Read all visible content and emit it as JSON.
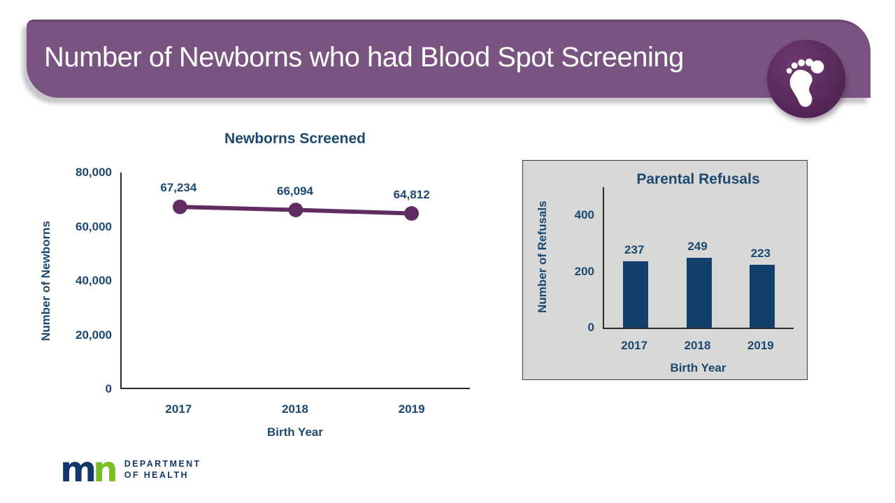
{
  "slide": {
    "title": "Number of Newborns who had Blood Spot Screening",
    "icon": "footprint-icon"
  },
  "colors": {
    "banner_purple": "#7A5480",
    "badge_circle_purple": "#5A2A5C",
    "line_purple": "#612C61",
    "bar_navy": "#12406B",
    "text_navy": "#1C4870",
    "panel_gray": "#D8D8D6",
    "logo_green": "#78BE21",
    "logo_navy": "#12386B"
  },
  "chart_data": [
    {
      "id": "screened",
      "type": "line",
      "title": "Newborns Screened",
      "categories": [
        "2017",
        "2018",
        "2019"
      ],
      "values": [
        67234,
        66094,
        64812
      ],
      "value_labels": [
        "67,234",
        "66,094",
        "64,812"
      ],
      "xlabel": "Birth Year",
      "ylabel": "Number of Newborns",
      "ylim": [
        0,
        80000
      ],
      "yticks": [
        0,
        20000,
        40000,
        60000,
        80000
      ],
      "ytick_labels": [
        "0",
        "20,000",
        "40,000",
        "60,000",
        "80,000"
      ],
      "grid": false,
      "legend": "none",
      "series_color": "#612C61"
    },
    {
      "id": "refusals",
      "type": "bar",
      "title": "Parental Refusals",
      "categories": [
        "2017",
        "2018",
        "2019"
      ],
      "values": [
        237,
        249,
        223
      ],
      "value_labels": [
        "237",
        "249",
        "223"
      ],
      "xlabel": "Birth Year",
      "ylabel": "Number of Refusals",
      "ylim": [
        0,
        500
      ],
      "yticks": [
        0,
        200,
        400
      ],
      "ytick_labels": [
        "0",
        "200",
        "400"
      ],
      "grid": false,
      "legend": "none",
      "bar_color": "#12406B",
      "panel_bg": "#D8D8D6"
    }
  ],
  "logo": {
    "mark_m": "m",
    "mark_n": "n",
    "line1": "DEPARTMENT",
    "line2": "OF HEALTH"
  }
}
